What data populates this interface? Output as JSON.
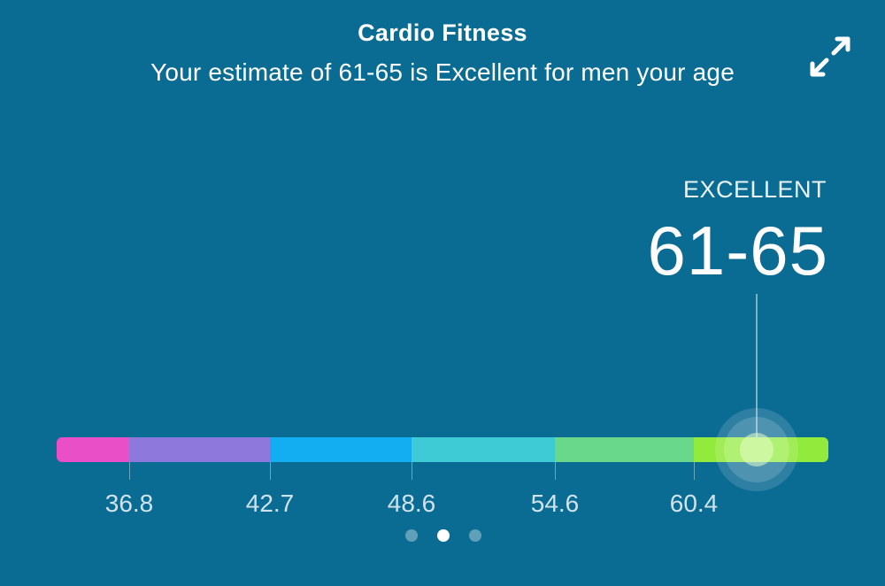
{
  "header": {
    "title": "Cardio Fitness",
    "subtitle": "Your estimate of 61-65 is Excellent for men your age",
    "expand_icon": "expand-arrows-icon"
  },
  "rating": {
    "label": "EXCELLENT",
    "value": "61-65"
  },
  "scale": {
    "segments": [
      {
        "color": "#e94fc6"
      },
      {
        "color": "#8f78dc"
      },
      {
        "color": "#12aef1"
      },
      {
        "color": "#3ecbd6"
      },
      {
        "color": "#6ad88a"
      },
      {
        "color": "#92ea3c"
      }
    ],
    "ticks": [
      "36.8",
      "42.7",
      "48.6",
      "54.6",
      "60.4"
    ]
  },
  "pagination": {
    "count": 3,
    "active_index": 1
  },
  "colors": {
    "background": "#0b6c93",
    "text": "#ffffff"
  }
}
